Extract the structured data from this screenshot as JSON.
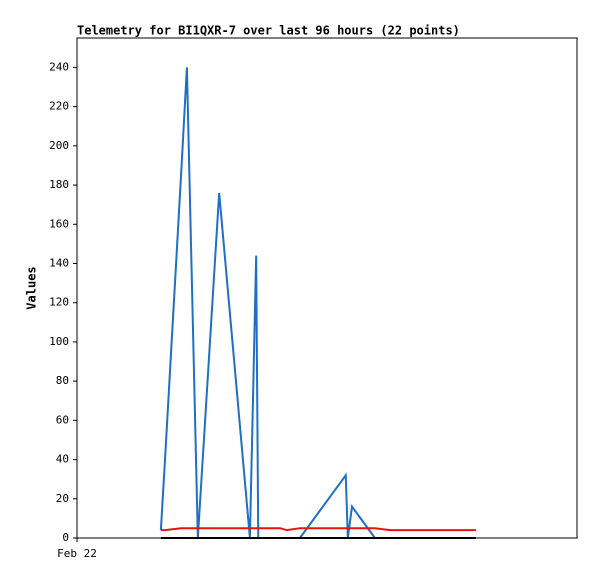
{
  "chart_data": {
    "type": "line",
    "title": "Telemetry for BI1QXR-7 over last 96 hours (22 points)",
    "y_label": "Values",
    "x": [
      16.1,
      16.9,
      20.0,
      21.1,
      23.2,
      27.3,
      33.2,
      34.4,
      34.8,
      39.0,
      40.3,
      42.8,
      51.6,
      52.0,
      52.8,
      57.2,
      60.1,
      63.9,
      67.8,
      71.6,
      74.5,
      76.6
    ],
    "series": [
      {
        "color": "#1f6fc5",
        "values": [
          4,
          40,
          186,
          240,
          0,
          176,
          0,
          144,
          0,
          0,
          0,
          0,
          32,
          0,
          16,
          0,
          0,
          0,
          0,
          0,
          0,
          0
        ]
      },
      {
        "color": "#e8140c",
        "values": [
          4,
          4,
          5,
          5,
          5,
          5,
          5,
          5,
          5,
          5,
          4,
          5,
          5,
          5,
          5,
          5,
          4,
          4,
          4,
          4,
          4,
          4
        ]
      },
      {
        "color": "#000000",
        "values": [
          0,
          0,
          0,
          0,
          0,
          0,
          0,
          0,
          0,
          0,
          0,
          0,
          0,
          0,
          0,
          0,
          0,
          0,
          0,
          0,
          0,
          0
        ]
      }
    ],
    "xlim": [
      0,
      96
    ],
    "xticks": [
      {
        "value": 0,
        "label": "Feb 22"
      }
    ],
    "ylim": [
      0,
      255
    ],
    "yticks": [
      0,
      20,
      40,
      60,
      80,
      100,
      120,
      140,
      160,
      180,
      200,
      220,
      240
    ]
  }
}
